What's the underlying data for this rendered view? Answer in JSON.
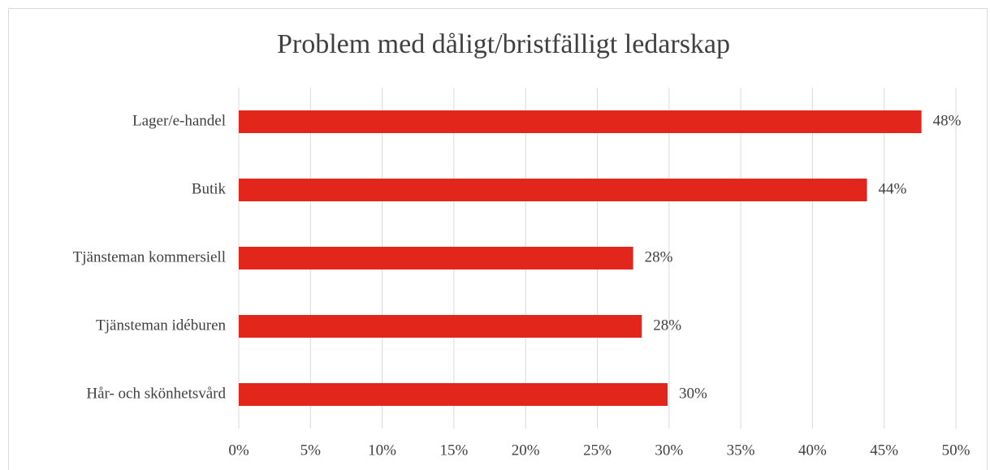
{
  "chart_data": {
    "type": "hbar",
    "title": "Problem med dåligt/bristfälligt ledarskap",
    "categories": [
      "Lager/e-handel",
      "Butik",
      "Tjänsteman kommersiell",
      "Tjänsteman idéburen",
      "Hår- och skönhetsvård"
    ],
    "values": [
      47.6,
      43.8,
      27.5,
      28.1,
      29.9
    ],
    "value_labels": [
      "48%",
      "44%",
      "28%",
      "28%",
      "30%"
    ],
    "color": "#e2261b",
    "xlim": [
      0,
      50
    ],
    "xticks": [
      {
        "value": 0,
        "label": "0%"
      },
      {
        "value": 5,
        "label": "5%"
      },
      {
        "value": 10,
        "label": "10%"
      },
      {
        "value": 15,
        "label": "15%"
      },
      {
        "value": 20,
        "label": "20%"
      },
      {
        "value": 25,
        "label": "25%"
      },
      {
        "value": 30,
        "label": "30%"
      },
      {
        "value": 35,
        "label": "35%"
      },
      {
        "value": 40,
        "label": "40%"
      },
      {
        "value": 45,
        "label": "45%"
      },
      {
        "value": 50,
        "label": "50%"
      }
    ],
    "grid": true
  }
}
